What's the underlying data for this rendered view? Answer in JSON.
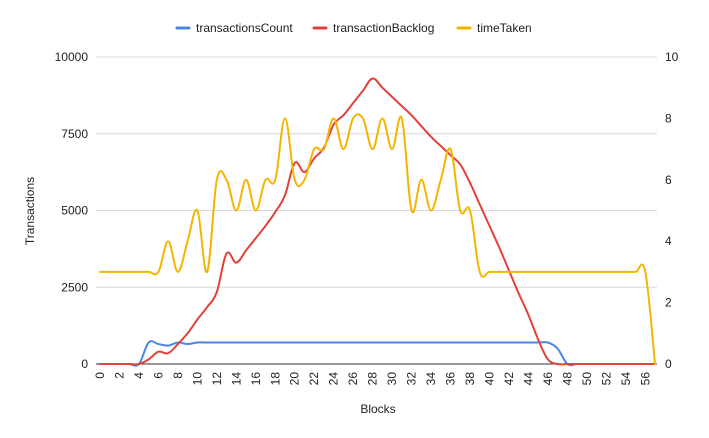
{
  "chart_data": {
    "type": "line",
    "title": "",
    "xlabel": "Blocks",
    "ylabel": "Transactions",
    "y2label": "",
    "x": [
      0,
      1,
      2,
      3,
      4,
      5,
      6,
      7,
      8,
      9,
      10,
      11,
      12,
      13,
      14,
      15,
      16,
      17,
      18,
      19,
      20,
      21,
      22,
      23,
      24,
      25,
      26,
      27,
      28,
      29,
      30,
      31,
      32,
      33,
      34,
      35,
      36,
      37,
      38,
      39,
      40,
      41,
      42,
      43,
      44,
      45,
      46,
      47,
      48,
      49,
      50,
      51,
      52,
      53,
      54,
      55,
      56,
      57
    ],
    "xticks": [
      "0",
      "2",
      "4",
      "6",
      "8",
      "10",
      "12",
      "14",
      "16",
      "18",
      "20",
      "22",
      "24",
      "26",
      "28",
      "30",
      "32",
      "34",
      "36",
      "38",
      "40",
      "42",
      "44",
      "46",
      "48",
      "50",
      "52",
      "54",
      "56"
    ],
    "ylim": [
      0,
      10000
    ],
    "yticks": [
      "0",
      "2500",
      "5000",
      "7500",
      "10000"
    ],
    "y2lim": [
      0,
      10
    ],
    "y2ticks": [
      "0",
      "2",
      "4",
      "6",
      "8",
      "10"
    ],
    "grid": true,
    "legend": "top-center",
    "series": [
      {
        "name": "transactionsCount",
        "axis": "left",
        "color": "#4a86e8",
        "values": [
          0,
          0,
          0,
          0,
          0,
          700,
          650,
          600,
          700,
          650,
          700,
          700,
          700,
          700,
          700,
          700,
          700,
          700,
          700,
          700,
          700,
          700,
          700,
          700,
          700,
          700,
          700,
          700,
          700,
          700,
          700,
          700,
          700,
          700,
          700,
          700,
          700,
          700,
          700,
          700,
          700,
          700,
          700,
          700,
          700,
          700,
          700,
          500,
          0,
          0,
          0,
          0,
          0,
          0,
          0,
          0,
          0,
          0
        ]
      },
      {
        "name": "transactionBacklog",
        "axis": "left",
        "color": "#e0413a",
        "values": [
          0,
          0,
          0,
          0,
          0,
          150,
          400,
          350,
          650,
          1000,
          1450,
          1850,
          2350,
          3600,
          3300,
          3700,
          4100,
          4500,
          4950,
          5500,
          6550,
          6250,
          6700,
          7050,
          7800,
          8100,
          8500,
          8900,
          9300,
          9000,
          8700,
          8400,
          8100,
          7750,
          7400,
          7100,
          6800,
          6500,
          5900,
          5200,
          4500,
          3800,
          3050,
          2300,
          1600,
          800,
          150,
          0,
          0,
          0,
          0,
          0,
          0,
          0,
          0,
          0,
          0,
          0
        ]
      },
      {
        "name": "timeTaken",
        "axis": "right",
        "color": "#f4b400",
        "values": [
          3,
          3,
          3,
          3,
          3,
          3,
          3,
          4,
          3,
          4,
          5,
          3,
          6,
          6,
          5,
          6,
          5,
          6,
          6,
          8,
          6,
          6,
          7,
          7,
          8,
          7,
          8,
          8,
          7,
          8,
          7,
          8,
          5,
          6,
          5,
          6,
          7,
          5,
          5,
          3,
          3,
          3,
          3,
          3,
          3,
          3,
          3,
          3,
          3,
          3,
          3,
          3,
          3,
          3,
          3,
          3,
          3,
          0
        ]
      }
    ]
  }
}
